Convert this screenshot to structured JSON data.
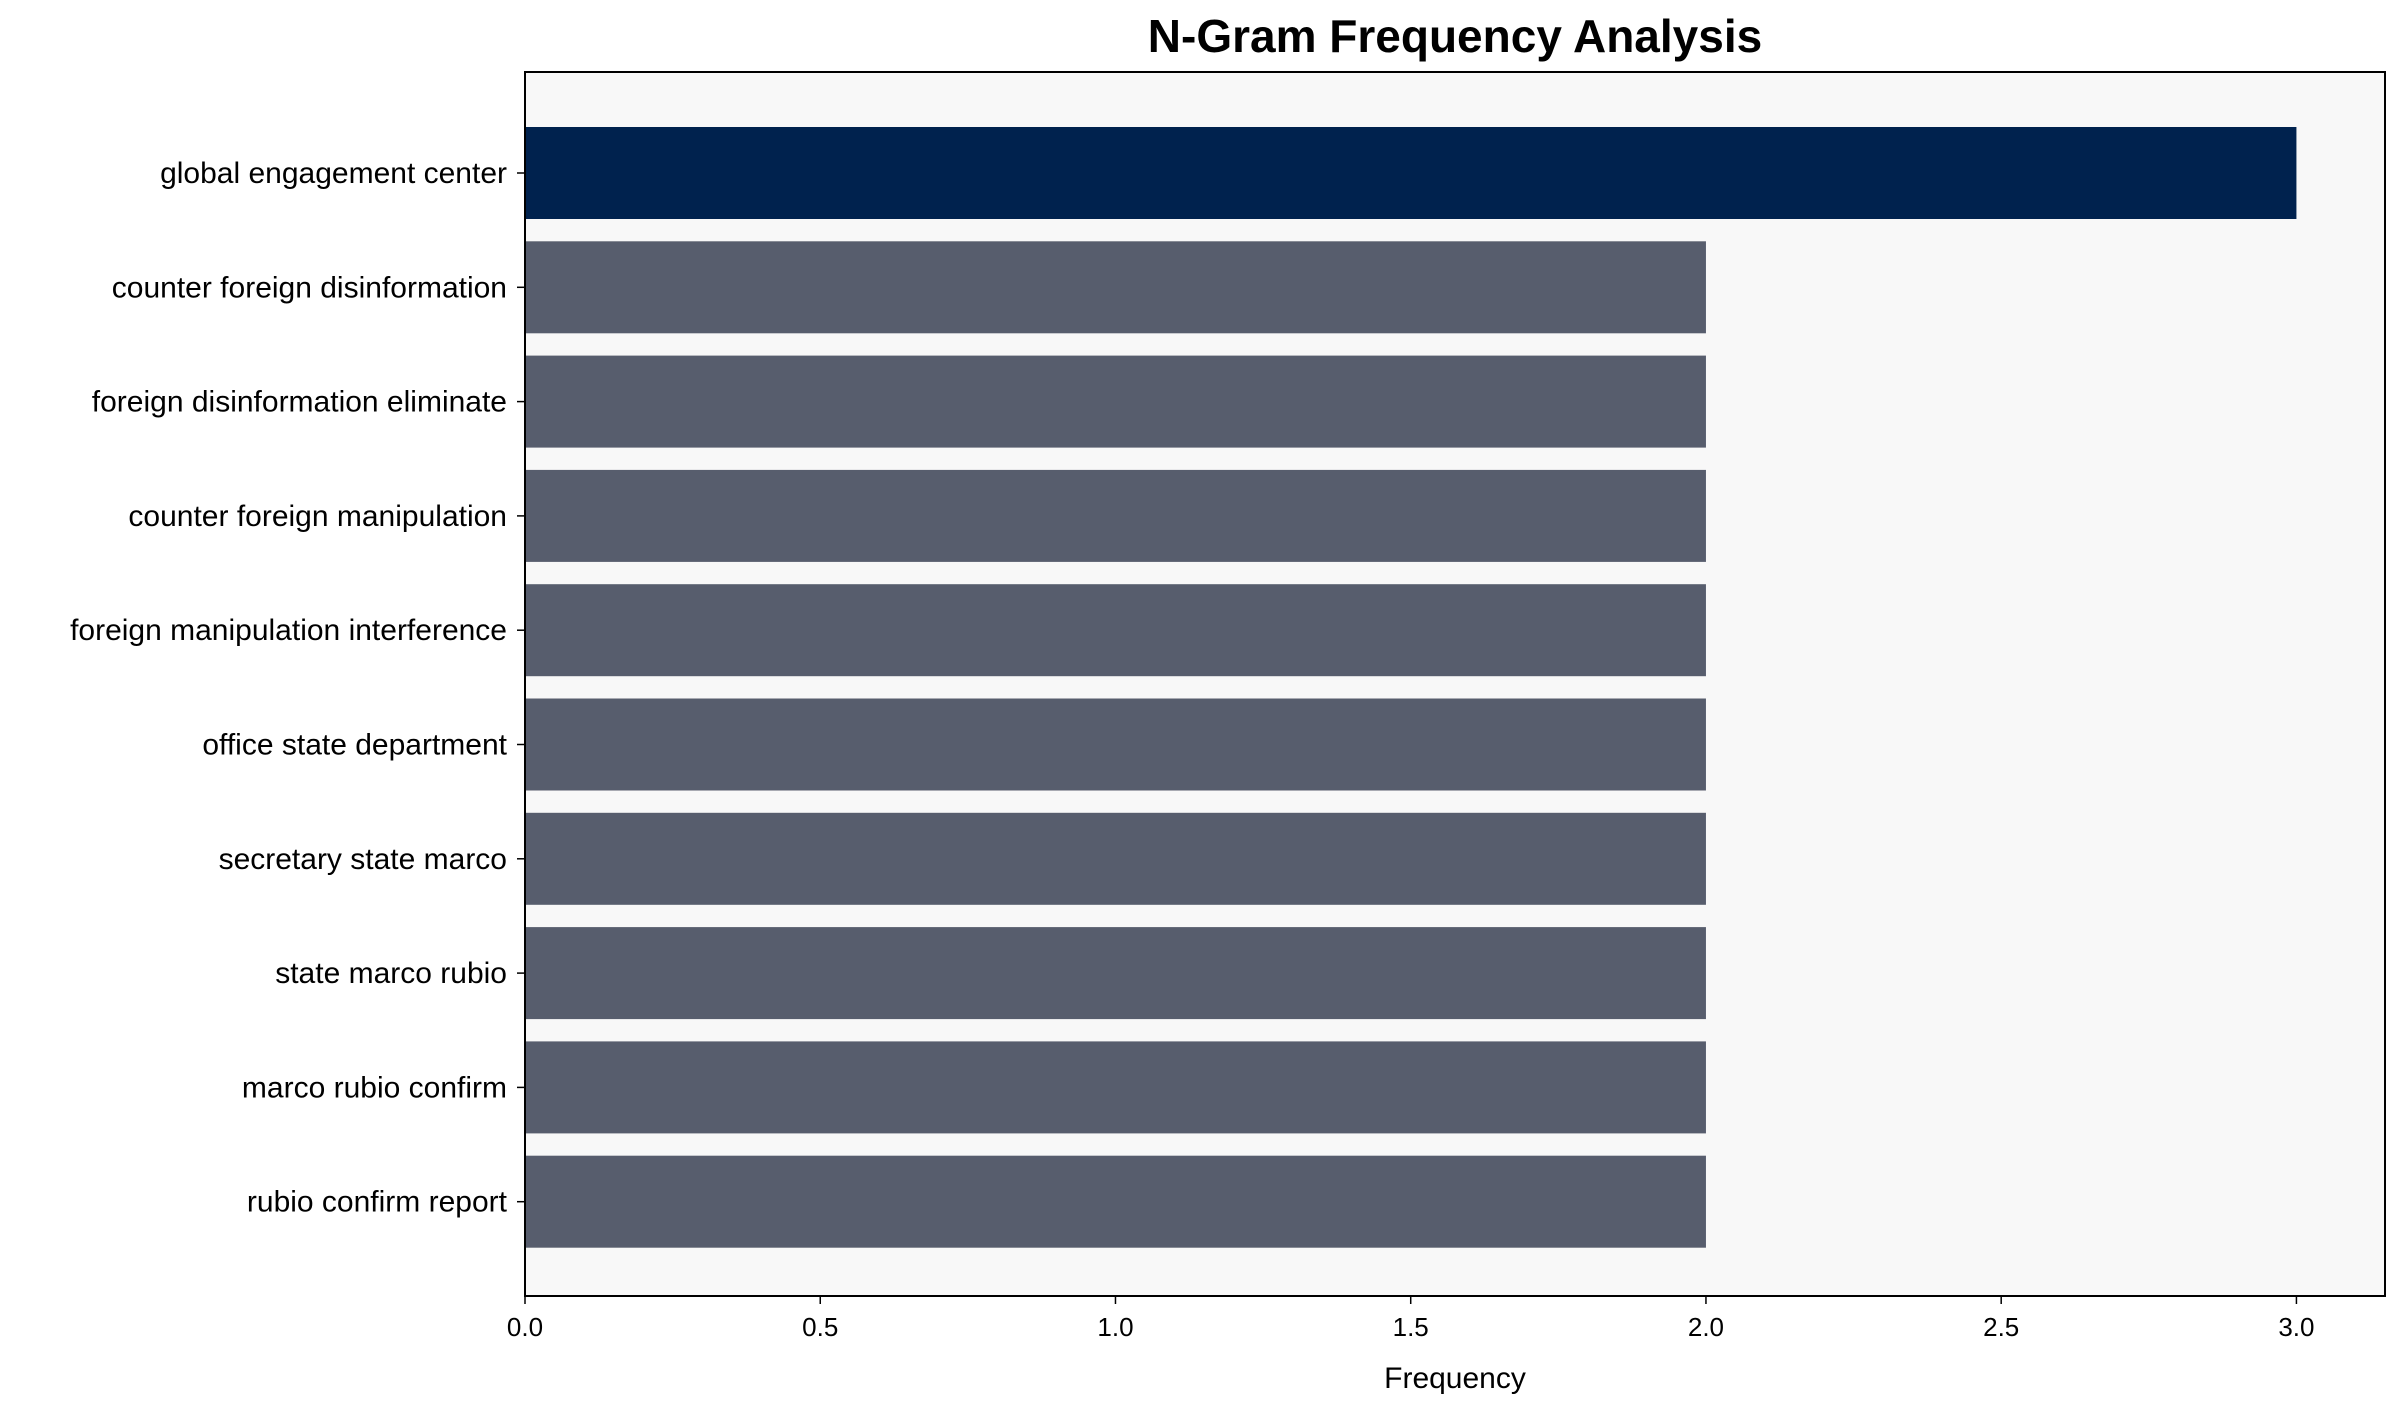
{
  "chart_data": {
    "type": "bar",
    "orientation": "horizontal",
    "title": "N-Gram Frequency Analysis",
    "xlabel": "Frequency",
    "ylabel": "",
    "categories": [
      "global engagement center",
      "counter foreign disinformation",
      "foreign disinformation eliminate",
      "counter foreign manipulation",
      "foreign manipulation interference",
      "office state department",
      "secretary state marco",
      "state marco rubio",
      "marco rubio confirm",
      "rubio confirm report"
    ],
    "values": [
      3,
      2,
      2,
      2,
      2,
      2,
      2,
      2,
      2,
      2
    ],
    "xlim": [
      0,
      3.15
    ],
    "xticks": [
      "0.0",
      "0.5",
      "1.0",
      "1.5",
      "2.0",
      "2.5",
      "3.0"
    ],
    "grid": false,
    "colors": {
      "highlight": "#00224e",
      "bar": "#575d6d",
      "plot_background": "#f8f8f8"
    }
  }
}
